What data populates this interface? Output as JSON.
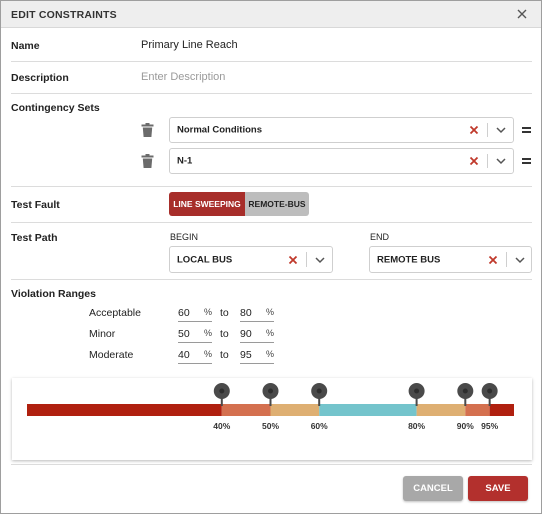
{
  "dialog": {
    "title": "EDIT CONSTRAINTS"
  },
  "name": {
    "label": "Name",
    "value": "Primary Line Reach"
  },
  "description": {
    "label": "Description",
    "placeholder": "Enter Description"
  },
  "contingency": {
    "label": "Contingency Sets",
    "sets": [
      {
        "value": "Normal Conditions"
      },
      {
        "value": "N-1"
      }
    ]
  },
  "test_fault": {
    "label": "Test Fault",
    "options": [
      "LINE SWEEPING",
      "REMOTE-BUS"
    ],
    "selected": "LINE SWEEPING",
    "selected_color": "#a72e2a"
  },
  "test_path": {
    "label": "Test Path",
    "begin_label": "BEGIN",
    "begin_value": "LOCAL BUS",
    "end_label": "END",
    "end_value": "REMOTE BUS"
  },
  "violation": {
    "label": "Violation Ranges",
    "unit": "%",
    "to_word": "to",
    "ranges": [
      {
        "name": "Acceptable",
        "from": "60",
        "to": "80"
      },
      {
        "name": "Minor",
        "from": "50",
        "to": "90"
      },
      {
        "name": "Moderate",
        "from": "40",
        "to": "95"
      }
    ]
  },
  "range_bar": {
    "colors": {
      "severe": "#b0200f",
      "moderate": "#d4704f",
      "minor": "#deaf72",
      "acceptable": "#74c4cc",
      "handle": "#4a4a4a"
    },
    "handles": [
      40,
      50,
      60,
      80,
      90,
      95
    ],
    "handle_labels": [
      "40%",
      "50%",
      "60%",
      "80%",
      "90%",
      "95%"
    ]
  },
  "buttons": {
    "cancel": "CANCEL",
    "save": "SAVE"
  },
  "icons": {
    "close": "close-icon",
    "trash": "trash-icon",
    "clear": "clear-x-icon",
    "chevron": "chevron-down-icon",
    "drag": "drag-handle-icon"
  }
}
